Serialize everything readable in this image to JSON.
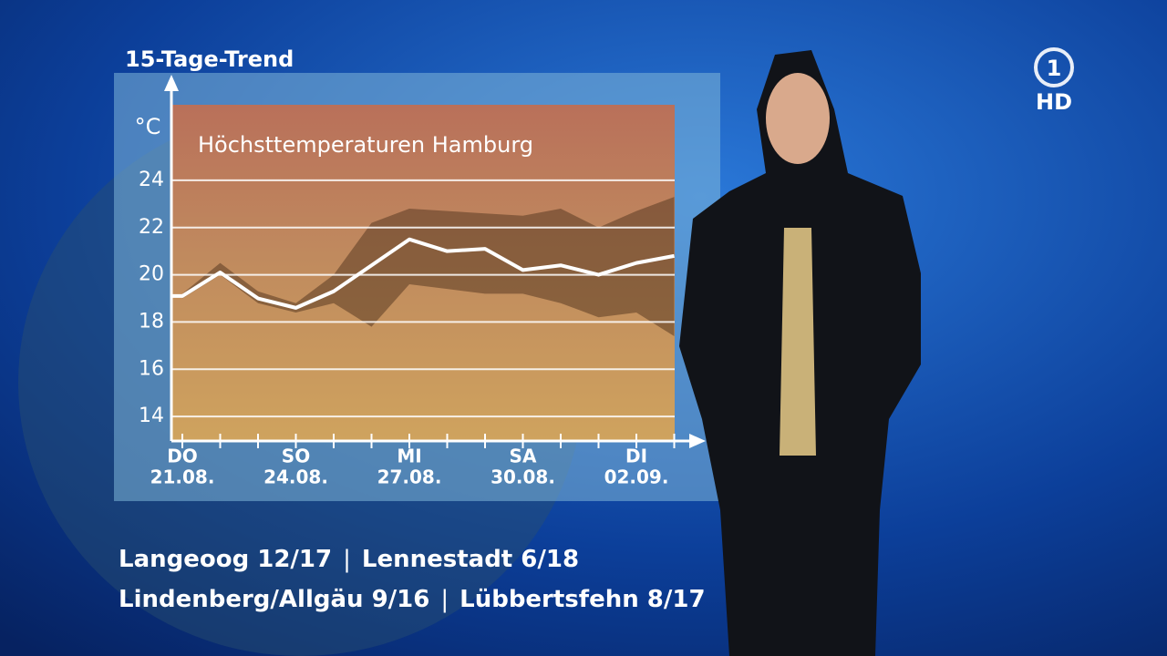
{
  "chart_data": {
    "type": "line",
    "title": "15-Tage-Trend",
    "subtitle": "Höchsttemperaturen Hamburg",
    "y_label": "°C",
    "categories": [
      "21.08.",
      null,
      null,
      "24.08.",
      null,
      null,
      "27.08.",
      null,
      null,
      "30.08.",
      null,
      null,
      "02.09.",
      null
    ],
    "weekdays": [
      "DO",
      null,
      null,
      "SO",
      null,
      null,
      "MI",
      null,
      null,
      "SA",
      null,
      null,
      "DI",
      null
    ],
    "values": [
      19.1,
      20.1,
      19.0,
      18.6,
      19.3,
      20.4,
      21.5,
      21.0,
      21.1,
      20.2,
      20.4,
      20.0,
      20.5,
      20.8
    ],
    "color": "#ffffff",
    "band": {
      "high": [
        19.2,
        20.5,
        19.3,
        18.8,
        20.0,
        22.2,
        22.8,
        22.7,
        22.6,
        22.5,
        22.8,
        22.0,
        22.7,
        23.3
      ],
      "low": [
        19.0,
        20.0,
        18.8,
        18.4,
        18.8,
        17.8,
        19.6,
        19.4,
        19.2,
        19.2,
        18.8,
        18.2,
        18.4,
        17.4
      ],
      "color": "#5a3a22"
    },
    "ylim": [
      13,
      27.2
    ],
    "yticks": [
      14,
      16,
      18,
      20,
      22,
      24
    ],
    "grid": true
  },
  "ticker": {
    "lines": [
      [
        "Langeoog 12/17",
        "Lennestadt 6/18"
      ],
      [
        "Lindenberg/Allgäu 9/16",
        "Lübbertsfehn 8/17"
      ]
    ],
    "separator": "|"
  },
  "logo": {
    "number": "1",
    "label": "HD"
  }
}
